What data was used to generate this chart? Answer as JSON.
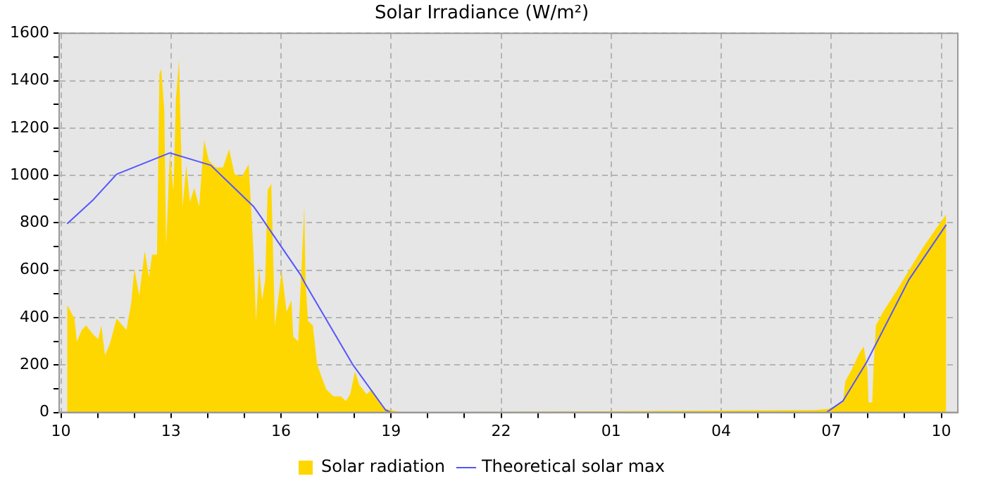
{
  "chart_data": {
    "type": "line",
    "title": "Solar Irradiance (W/m²)",
    "xlim": [
      "--01-01T09:57",
      "--01-02T10:27"
    ],
    "xticks": [
      {
        "value": "--01-01T10:00",
        "label": "10"
      },
      {
        "value": "--01-01T11:00",
        "label": null
      },
      {
        "value": "--01-01T12:00",
        "label": null
      },
      {
        "value": "--01-01T13:00",
        "label": "13"
      },
      {
        "value": "--01-01T14:00",
        "label": null
      },
      {
        "value": "--01-01T15:00",
        "label": null
      },
      {
        "value": "--01-01T16:00",
        "label": "16"
      },
      {
        "value": "--01-01T17:00",
        "label": null
      },
      {
        "value": "--01-01T18:00",
        "label": null
      },
      {
        "value": "--01-01T19:00",
        "label": "19"
      },
      {
        "value": "--01-01T20:00",
        "label": null
      },
      {
        "value": "--01-01T21:00",
        "label": null
      },
      {
        "value": "--01-01T22:00",
        "label": "22"
      },
      {
        "value": "--01-01T23:00",
        "label": null
      },
      {
        "value": "--01-02T00:00",
        "label": null
      },
      {
        "value": "--01-02T01:00",
        "label": "01"
      },
      {
        "value": "--01-02T02:00",
        "label": null
      },
      {
        "value": "--01-02T03:00",
        "label": null
      },
      {
        "value": "--01-02T04:00",
        "label": "04"
      },
      {
        "value": "--01-02T05:00",
        "label": null
      },
      {
        "value": "--01-02T06:00",
        "label": null
      },
      {
        "value": "--01-02T07:00",
        "label": "07"
      },
      {
        "value": "--01-02T08:00",
        "label": null
      },
      {
        "value": "--01-02T09:00",
        "label": null
      },
      {
        "value": "--01-02T10:00",
        "label": "10"
      }
    ],
    "ylim": [
      0,
      1600
    ],
    "yticks": [
      0,
      {
        "value": 100,
        "label": null
      },
      200,
      {
        "value": 300,
        "label": null
      },
      400,
      {
        "value": 500,
        "label": null
      },
      600,
      {
        "value": 700,
        "label": null
      },
      800,
      {
        "value": 900,
        "label": null
      },
      1000,
      {
        "value": 1100,
        "label": null
      },
      1200,
      {
        "value": 1300,
        "label": null
      },
      1400,
      {
        "value": 1500,
        "label": null
      },
      1600
    ],
    "grid": true,
    "legend": "bottom",
    "series": [
      {
        "name": "Solar radiation",
        "type": "area",
        "color": "#ffd700",
        "x": [
          "--01-01T10:10",
          "--01-01T10:10",
          "--01-01T10:22",
          "--01-01T10:26",
          "--01-01T10:34",
          "--01-01T10:41",
          "--01-01T10:53",
          "--01-01T11:01",
          "--01-01T11:06",
          "--01-01T11:12",
          "--01-01T11:20",
          "--01-01T11:31",
          "--01-01T11:47",
          "--01-01T11:55",
          "--01-01T12:00",
          "--01-01T12:08",
          "--01-01T12:17",
          "--01-01T12:24",
          "--01-01T12:29",
          "--01-01T12:37",
          "--01-01T12:41",
          "--01-01T12:44",
          "--01-01T12:49",
          "--01-01T12:52",
          "--01-01T12:58",
          "--01-01T13:04",
          "--01-01T13:08",
          "--01-01T13:13",
          "--01-01T13:19",
          "--01-01T13:25",
          "--01-01T13:31",
          "--01-01T13:38",
          "--01-01T13:46",
          "--01-01T13:54",
          "--01-01T14:02",
          "--01-01T14:13",
          "--01-01T14:25",
          "--01-01T14:35",
          "--01-01T14:44",
          "--01-01T14:56",
          "--01-01T15:07",
          "--01-01T15:15",
          "--01-01T15:19",
          "--01-01T15:24",
          "--01-01T15:29",
          "--01-01T15:34",
          "--01-01T15:38",
          "--01-01T15:44",
          "--01-01T15:50",
          "--01-01T16:01",
          "--01-01T16:09",
          "--01-01T16:17",
          "--01-01T16:20",
          "--01-01T16:28",
          "--01-01T16:38",
          "--01-01T16:40",
          "--01-01T16:44",
          "--01-01T16:52",
          "--01-01T16:59",
          "--01-01T17:07",
          "--01-01T17:14",
          "--01-01T17:26",
          "--01-01T17:38",
          "--01-01T17:46",
          "--01-01T17:53",
          "--01-01T18:01",
          "--01-01T18:08",
          "--01-01T18:20",
          "--01-01T18:28",
          "--01-01T18:35",
          "--01-01T18:47",
          "--01-01T18:59",
          "--01-01T19:18",
          "--01-02T06:33",
          "--01-02T06:56",
          "--01-02T07:19",
          "--01-02T07:23",
          "--01-02T07:34",
          "--01-02T07:46",
          "--01-02T07:53",
          "--01-02T07:59",
          "--01-02T08:01",
          "--01-02T08:07",
          "--01-02T08:09",
          "--01-02T08:13",
          "--01-02T08:25",
          "--01-02T08:44",
          "--01-02T09:07",
          "--01-02T09:30",
          "--01-02T09:53",
          "--01-02T10:08",
          "--01-02T10:08"
        ],
        "values": [
          0,
          454,
          396,
          300,
          348,
          367,
          328,
          309,
          367,
          241,
          290,
          396,
          348,
          464,
          608,
          493,
          682,
          570,
          666,
          666,
          1430,
          1449,
          1275,
          705,
          1092,
          937,
          1323,
          1488,
          869,
          1043,
          889,
          947,
          869,
          1150,
          1063,
          1034,
          1034,
          1111,
          1005,
          995,
          1047,
          676,
          386,
          618,
          473,
          560,
          937,
          966,
          367,
          599,
          425,
          473,
          319,
          300,
          869,
          560,
          386,
          367,
          203,
          145,
          97,
          68,
          68,
          48,
          77,
          174,
          116,
          77,
          97,
          68,
          19,
          10,
          0,
          10,
          15,
          43,
          131,
          184,
          251,
          278,
          184,
          43,
          43,
          184,
          367,
          425,
          502,
          599,
          696,
          782,
          835,
          0
        ]
      },
      {
        "name": "Theoretical solar max",
        "type": "line",
        "color": "#5555ff",
        "x": [
          "--01-01T10:10",
          "--01-01T10:53",
          "--01-01T11:31",
          "--01-01T12:58",
          "--01-01T14:05",
          "--01-01T15:15",
          "--01-01T15:23",
          "--01-01T16:32",
          "--01-01T16:40",
          "--01-01T17:57",
          "--01-01T18:51",
          "--01-01T19:00",
          "--01-02T01:00",
          "--01-02T06:52",
          "--01-02T07:19",
          "--01-02T07:58",
          "--01-02T09:07",
          "--01-02T10:08"
        ],
        "values": [
          796,
          898,
          1005,
          1095,
          1043,
          869,
          840,
          580,
          541,
          203,
          10,
          0,
          null,
          0,
          48,
          213,
          560,
          792
        ]
      }
    ]
  }
}
